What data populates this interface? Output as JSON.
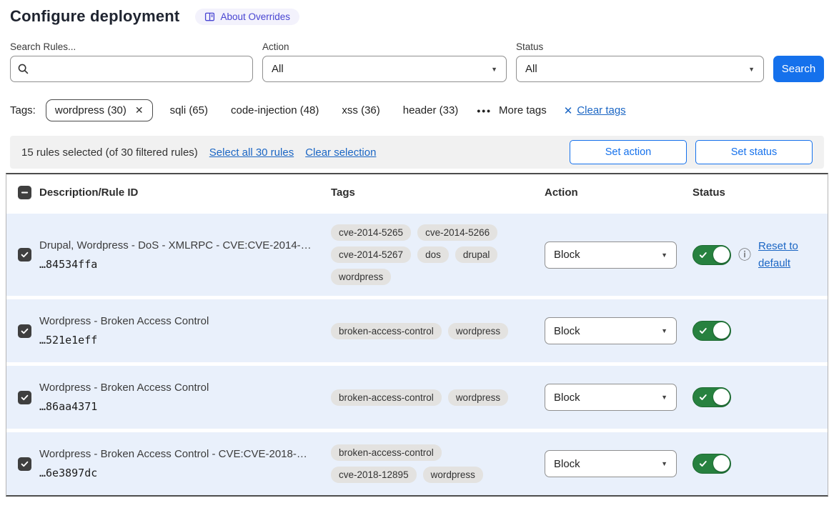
{
  "page": {
    "title": "Configure deployment",
    "about_badge": "About Overrides"
  },
  "filters": {
    "search_label": "Search Rules...",
    "search_value": "",
    "action_label": "Action",
    "action_value": "All",
    "status_label": "Status",
    "status_value": "All",
    "search_button": "Search"
  },
  "tags_bar": {
    "label": "Tags:",
    "selected_tag": "wordpress (30)",
    "options": [
      "sqli (65)",
      "code-injection (48)",
      "xss (36)",
      "header (33)"
    ],
    "more_tags": "More tags",
    "clear_tags": "Clear tags"
  },
  "selection_bar": {
    "summary": "15 rules selected (of 30 filtered rules)",
    "select_all": "Select all 30 rules",
    "clear_selection": "Clear selection",
    "set_action": "Set action",
    "set_status": "Set status"
  },
  "table": {
    "columns": [
      "Description/Rule ID",
      "Tags",
      "Action",
      "Status"
    ],
    "rows": [
      {
        "description": "Drupal, Wordpress - DoS - XMLRPC - CVE:CVE-2014-…",
        "rule_id": "…84534ffa",
        "tags": [
          "cve-2014-5265",
          "cve-2014-5266",
          "cve-2014-5267",
          "dos",
          "drupal",
          "wordpress"
        ],
        "action": "Block",
        "enabled": true,
        "reset_link": "Reset to default"
      },
      {
        "description": "Wordpress - Broken Access Control",
        "rule_id": "…521e1eff",
        "tags": [
          "broken-access-control",
          "wordpress"
        ],
        "action": "Block",
        "enabled": true
      },
      {
        "description": "Wordpress - Broken Access Control",
        "rule_id": "…86aa4371",
        "tags": [
          "broken-access-control",
          "wordpress"
        ],
        "action": "Block",
        "enabled": true
      },
      {
        "description": "Wordpress - Broken Access Control - CVE:CVE-2018-…",
        "rule_id": "…6e3897dc",
        "tags": [
          "broken-access-control",
          "cve-2018-12895",
          "wordpress"
        ],
        "action": "Block",
        "enabled": true
      }
    ]
  },
  "icons": {
    "badge": "book-open-icon",
    "search": "search-icon",
    "info": "info-icon",
    "toggle": "check-icon"
  },
  "colors": {
    "accent_blue": "#1571ec",
    "link_blue": "#1b66c4",
    "toggle_green": "#27813f",
    "row_selected_bg": "#e9f0fb",
    "badge_bg": "#f3f2fc",
    "badge_text": "#4845d2",
    "tag_pill_bg": "#e3e2e0",
    "selection_bar_bg": "#f1f1f1"
  }
}
